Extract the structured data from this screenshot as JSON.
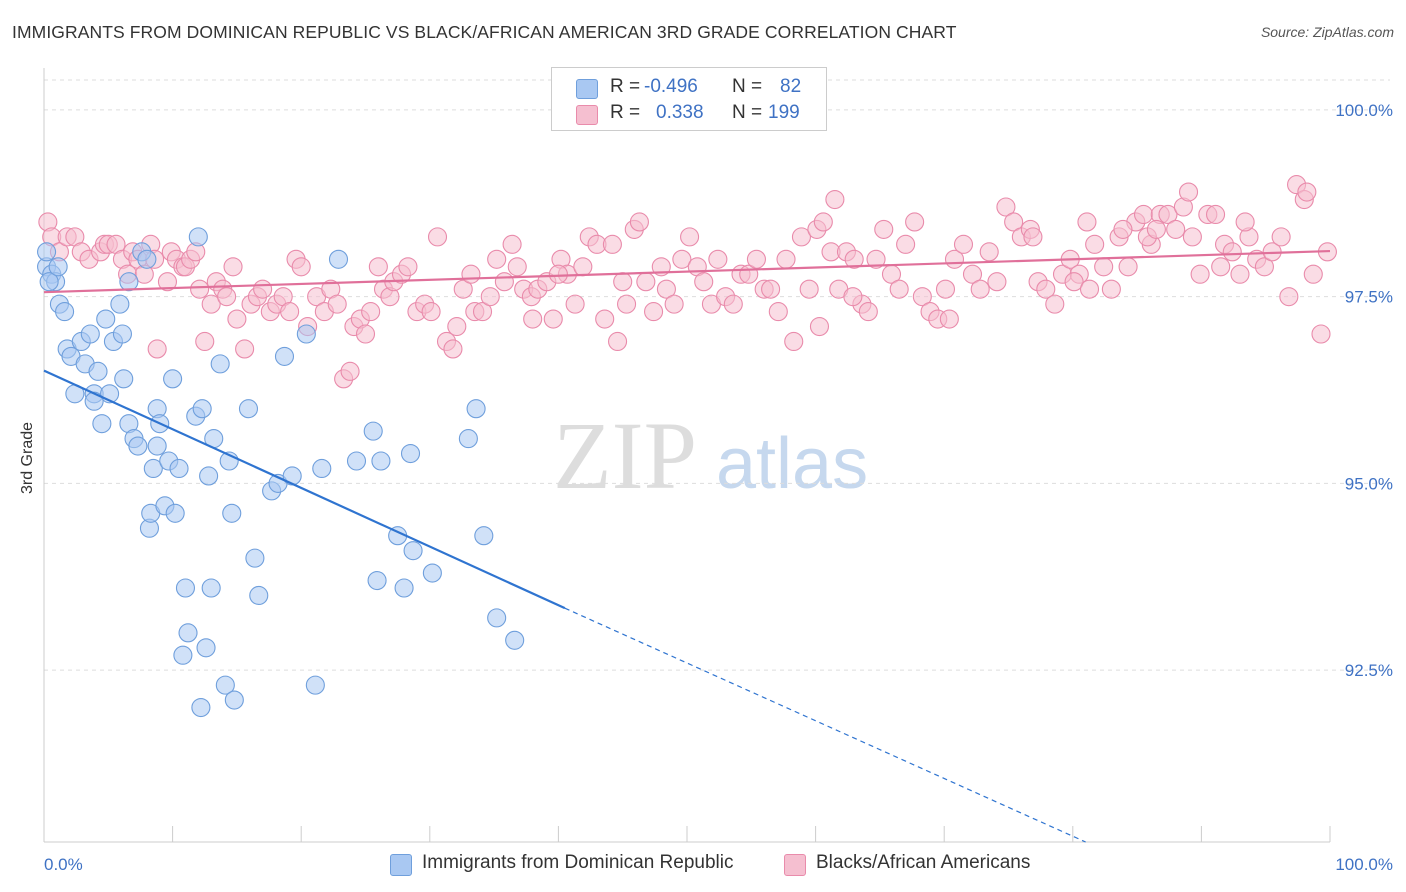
{
  "title": "IMMIGRANTS FROM DOMINICAN REPUBLIC VS BLACK/AFRICAN AMERICAN 3RD GRADE CORRELATION CHART",
  "source": "Source: ZipAtlas.com",
  "watermark": {
    "zip": "ZIP",
    "atlas": "atlas"
  },
  "legend": {
    "rows": [
      {
        "r_label": "R =",
        "r_value": "-0.496",
        "n_label": "N =",
        "n_value": "82",
        "color": "#a9c8f2",
        "border": "#6f9fdc"
      },
      {
        "r_label": "R =",
        "r_value": "0.338",
        "n_label": "N =",
        "n_value": "199",
        "color": "#f5bfd0",
        "border": "#e98bab"
      }
    ]
  },
  "bottom_legend": {
    "series1": "Immigrants from Dominican Republic",
    "series2": "Blacks/African Americans"
  },
  "chart_data": {
    "type": "scatter",
    "title": "IMMIGRANTS FROM DOMINICAN REPUBLIC VS BLACK/AFRICAN AMERICAN 3RD GRADE CORRELATION CHART",
    "xlabel": "",
    "ylabel": "3rd Grade",
    "xlim": [
      0,
      100
    ],
    "ylim": [
      90.2,
      100.4
    ],
    "x_tick_labels": [
      "0.0%",
      "100.0%"
    ],
    "y_ticks": [
      {
        "value": 100.0,
        "label": "100.0%"
      },
      {
        "value": 97.5,
        "label": "97.5%"
      },
      {
        "value": 95.0,
        "label": "95.0%"
      },
      {
        "value": 92.5,
        "label": "92.5%"
      }
    ],
    "grid": "horizontal dashed",
    "legend_placement": "top-center",
    "series": [
      {
        "name": "Immigrants from Dominican Republic",
        "color": "#6f9fdc",
        "fill": "#a9c8f2",
        "r": -0.496,
        "n": 82,
        "trend": {
          "x": [
            0,
            40.5
          ],
          "y": [
            96.51,
            93.33
          ],
          "dashed_to": [
            81.0,
            90.2
          ]
        },
        "points": [
          [
            0.2,
            97.9
          ],
          [
            0.6,
            97.8
          ],
          [
            0.9,
            97.7
          ],
          [
            1.2,
            97.4
          ],
          [
            1.6,
            97.3
          ],
          [
            1.8,
            96.8
          ],
          [
            2.1,
            96.7
          ],
          [
            2.4,
            96.2
          ],
          [
            2.9,
            96.9
          ],
          [
            3.2,
            96.6
          ],
          [
            3.6,
            97.0
          ],
          [
            3.9,
            96.2
          ],
          [
            4.2,
            96.5
          ],
          [
            4.5,
            95.8
          ],
          [
            4.8,
            97.2
          ],
          [
            5.1,
            96.2
          ],
          [
            5.4,
            96.9
          ],
          [
            5.9,
            97.4
          ],
          [
            6.1,
            97.0
          ],
          [
            6.2,
            96.4
          ],
          [
            6.6,
            97.7
          ],
          [
            6.6,
            95.8
          ],
          [
            7.0,
            95.6
          ],
          [
            7.3,
            95.5
          ],
          [
            7.6,
            98.1
          ],
          [
            8.0,
            98.0
          ],
          [
            8.2,
            94.4
          ],
          [
            8.3,
            94.6
          ],
          [
            8.5,
            95.2
          ],
          [
            8.8,
            95.5
          ],
          [
            8.8,
            96.0
          ],
          [
            9.0,
            95.8
          ],
          [
            9.4,
            94.7
          ],
          [
            9.7,
            95.3
          ],
          [
            10.0,
            96.4
          ],
          [
            10.2,
            94.6
          ],
          [
            10.5,
            95.2
          ],
          [
            10.8,
            92.7
          ],
          [
            11.0,
            93.6
          ],
          [
            11.2,
            93.0
          ],
          [
            11.8,
            95.9
          ],
          [
            12.0,
            98.3
          ],
          [
            12.2,
            92.0
          ],
          [
            12.3,
            96.0
          ],
          [
            12.6,
            92.8
          ],
          [
            12.8,
            95.1
          ],
          [
            13.0,
            93.6
          ],
          [
            13.2,
            95.6
          ],
          [
            13.7,
            96.6
          ],
          [
            14.1,
            92.3
          ],
          [
            14.4,
            95.3
          ],
          [
            14.6,
            94.6
          ],
          [
            14.8,
            92.1
          ],
          [
            15.9,
            96.0
          ],
          [
            16.4,
            94.0
          ],
          [
            16.7,
            93.5
          ],
          [
            17.7,
            94.9
          ],
          [
            18.2,
            95.0
          ],
          [
            18.7,
            96.7
          ],
          [
            19.3,
            95.1
          ],
          [
            20.4,
            97.0
          ],
          [
            21.1,
            92.3
          ],
          [
            21.6,
            95.2
          ],
          [
            22.9,
            98.0
          ],
          [
            24.3,
            95.3
          ],
          [
            25.6,
            95.7
          ],
          [
            25.9,
            93.7
          ],
          [
            26.2,
            95.3
          ],
          [
            27.5,
            94.3
          ],
          [
            28.0,
            93.6
          ],
          [
            28.5,
            95.4
          ],
          [
            28.7,
            94.1
          ],
          [
            30.2,
            93.8
          ],
          [
            33.0,
            95.6
          ],
          [
            33.6,
            96.0
          ],
          [
            34.2,
            94.3
          ],
          [
            35.2,
            93.2
          ],
          [
            36.6,
            92.9
          ],
          [
            3.9,
            96.1
          ],
          [
            0.4,
            97.7
          ],
          [
            0.2,
            98.1
          ],
          [
            1.1,
            97.9
          ]
        ]
      },
      {
        "name": "Blacks/African Americans",
        "color": "#e98bab",
        "fill": "#f5bfd0",
        "r": 0.338,
        "n": 199,
        "trend": {
          "x": [
            0,
            100
          ],
          "y": [
            97.56,
            98.11
          ]
        },
        "points": [
          [
            0.3,
            98.5
          ],
          [
            0.6,
            98.3
          ],
          [
            1.2,
            98.1
          ],
          [
            1.8,
            98.3
          ],
          [
            2.4,
            98.3
          ],
          [
            2.9,
            98.1
          ],
          [
            3.5,
            98.0
          ],
          [
            4.4,
            98.1
          ],
          [
            4.7,
            98.2
          ],
          [
            5.0,
            98.2
          ],
          [
            5.6,
            98.2
          ],
          [
            6.1,
            98.0
          ],
          [
            6.5,
            97.8
          ],
          [
            6.9,
            98.1
          ],
          [
            7.3,
            98.0
          ],
          [
            7.8,
            97.8
          ],
          [
            8.3,
            98.2
          ],
          [
            8.6,
            98.0
          ],
          [
            8.8,
            96.8
          ],
          [
            9.6,
            97.7
          ],
          [
            9.9,
            98.1
          ],
          [
            10.3,
            98.0
          ],
          [
            10.8,
            97.9
          ],
          [
            11.0,
            97.9
          ],
          [
            11.4,
            98.0
          ],
          [
            11.8,
            98.1
          ],
          [
            12.1,
            97.6
          ],
          [
            12.5,
            96.9
          ],
          [
            13.0,
            97.4
          ],
          [
            13.4,
            97.7
          ],
          [
            13.9,
            97.6
          ],
          [
            14.2,
            97.5
          ],
          [
            14.7,
            97.9
          ],
          [
            15.0,
            97.2
          ],
          [
            15.6,
            96.8
          ],
          [
            16.1,
            97.4
          ],
          [
            16.6,
            97.5
          ],
          [
            17.0,
            97.6
          ],
          [
            17.6,
            97.3
          ],
          [
            18.1,
            97.4
          ],
          [
            18.6,
            97.5
          ],
          [
            19.1,
            97.3
          ],
          [
            19.6,
            98.0
          ],
          [
            20.0,
            97.9
          ],
          [
            20.5,
            97.1
          ],
          [
            21.2,
            97.5
          ],
          [
            21.8,
            97.3
          ],
          [
            22.3,
            97.6
          ],
          [
            22.8,
            97.4
          ],
          [
            23.3,
            96.4
          ],
          [
            23.8,
            96.5
          ],
          [
            24.1,
            97.1
          ],
          [
            24.6,
            97.2
          ],
          [
            25.0,
            97.0
          ],
          [
            25.4,
            97.3
          ],
          [
            26.0,
            97.9
          ],
          [
            26.4,
            97.6
          ],
          [
            26.9,
            97.5
          ],
          [
            27.2,
            97.7
          ],
          [
            27.8,
            97.8
          ],
          [
            28.3,
            97.9
          ],
          [
            29.0,
            97.3
          ],
          [
            29.6,
            97.4
          ],
          [
            30.1,
            97.3
          ],
          [
            30.6,
            98.3
          ],
          [
            31.3,
            96.9
          ],
          [
            31.8,
            96.8
          ],
          [
            32.1,
            97.1
          ],
          [
            32.6,
            97.6
          ],
          [
            33.2,
            97.8
          ],
          [
            33.5,
            97.3
          ],
          [
            34.1,
            97.3
          ],
          [
            34.7,
            97.5
          ],
          [
            35.2,
            98.0
          ],
          [
            35.8,
            97.7
          ],
          [
            36.4,
            98.2
          ],
          [
            36.8,
            97.9
          ],
          [
            37.3,
            97.6
          ],
          [
            37.9,
            97.5
          ],
          [
            38.4,
            97.6
          ],
          [
            39.1,
            97.7
          ],
          [
            39.6,
            97.2
          ],
          [
            40.2,
            98.0
          ],
          [
            40.7,
            97.8
          ],
          [
            41.3,
            97.4
          ],
          [
            41.9,
            97.9
          ],
          [
            42.4,
            98.3
          ],
          [
            43.0,
            98.2
          ],
          [
            43.6,
            97.2
          ],
          [
            44.2,
            98.2
          ],
          [
            44.6,
            96.9
          ],
          [
            45.3,
            97.4
          ],
          [
            45.9,
            98.4
          ],
          [
            46.3,
            98.5
          ],
          [
            46.8,
            97.7
          ],
          [
            47.4,
            97.3
          ],
          [
            48.0,
            97.9
          ],
          [
            48.4,
            97.6
          ],
          [
            49.0,
            97.4
          ],
          [
            49.6,
            98.0
          ],
          [
            50.2,
            98.3
          ],
          [
            50.8,
            97.9
          ],
          [
            51.3,
            97.7
          ],
          [
            51.9,
            97.4
          ],
          [
            52.4,
            98.0
          ],
          [
            53.0,
            97.5
          ],
          [
            53.6,
            97.4
          ],
          [
            54.2,
            97.8
          ],
          [
            54.8,
            97.8
          ],
          [
            55.4,
            98.0
          ],
          [
            56.0,
            97.6
          ],
          [
            56.5,
            97.6
          ],
          [
            57.1,
            97.3
          ],
          [
            57.7,
            98.0
          ],
          [
            58.3,
            96.9
          ],
          [
            58.9,
            98.3
          ],
          [
            59.5,
            97.6
          ],
          [
            60.1,
            98.4
          ],
          [
            60.6,
            98.5
          ],
          [
            61.2,
            98.1
          ],
          [
            61.8,
            97.6
          ],
          [
            62.4,
            98.1
          ],
          [
            63.0,
            98.0
          ],
          [
            63.6,
            97.4
          ],
          [
            64.1,
            97.3
          ],
          [
            64.7,
            98.0
          ],
          [
            65.3,
            98.4
          ],
          [
            65.9,
            97.8
          ],
          [
            66.5,
            97.6
          ],
          [
            67.0,
            98.2
          ],
          [
            67.7,
            98.5
          ],
          [
            68.3,
            97.5
          ],
          [
            68.9,
            97.3
          ],
          [
            69.5,
            97.2
          ],
          [
            70.1,
            97.6
          ],
          [
            70.8,
            98.0
          ],
          [
            71.5,
            98.2
          ],
          [
            72.2,
            97.8
          ],
          [
            72.8,
            97.6
          ],
          [
            73.5,
            98.1
          ],
          [
            74.1,
            97.7
          ],
          [
            74.8,
            98.7
          ],
          [
            75.4,
            98.5
          ],
          [
            76.0,
            98.3
          ],
          [
            76.7,
            98.4
          ],
          [
            77.3,
            97.7
          ],
          [
            77.9,
            97.6
          ],
          [
            78.6,
            97.4
          ],
          [
            79.2,
            97.8
          ],
          [
            79.8,
            98.0
          ],
          [
            80.5,
            97.8
          ],
          [
            81.1,
            98.5
          ],
          [
            81.7,
            98.2
          ],
          [
            82.4,
            97.9
          ],
          [
            83.0,
            97.6
          ],
          [
            83.6,
            98.3
          ],
          [
            84.3,
            97.9
          ],
          [
            84.9,
            98.5
          ],
          [
            85.5,
            98.6
          ],
          [
            86.1,
            98.2
          ],
          [
            86.8,
            98.6
          ],
          [
            87.4,
            98.6
          ],
          [
            88.0,
            98.4
          ],
          [
            88.6,
            98.7
          ],
          [
            89.3,
            98.3
          ],
          [
            89.9,
            97.8
          ],
          [
            90.5,
            98.6
          ],
          [
            91.1,
            98.6
          ],
          [
            91.8,
            98.2
          ],
          [
            92.4,
            98.1
          ],
          [
            93.0,
            97.8
          ],
          [
            93.7,
            98.3
          ],
          [
            94.3,
            98.0
          ],
          [
            94.9,
            97.9
          ],
          [
            95.5,
            98.1
          ],
          [
            96.2,
            98.3
          ],
          [
            96.8,
            97.5
          ],
          [
            97.4,
            99.0
          ],
          [
            98.0,
            98.8
          ],
          [
            98.7,
            97.8
          ],
          [
            99.3,
            97.0
          ],
          [
            99.8,
            98.1
          ],
          [
            83.9,
            98.4
          ],
          [
            85.8,
            98.3
          ],
          [
            61.5,
            98.8
          ],
          [
            38.0,
            97.2
          ],
          [
            40.0,
            97.8
          ],
          [
            62.9,
            97.5
          ],
          [
            70.4,
            97.2
          ],
          [
            80.1,
            97.7
          ],
          [
            89.0,
            98.9
          ],
          [
            93.4,
            98.5
          ],
          [
            98.2,
            98.9
          ],
          [
            76.9,
            98.3
          ],
          [
            86.5,
            98.4
          ],
          [
            91.5,
            97.9
          ],
          [
            81.3,
            97.6
          ],
          [
            45.0,
            97.7
          ],
          [
            60.3,
            97.1
          ]
        ]
      }
    ]
  }
}
